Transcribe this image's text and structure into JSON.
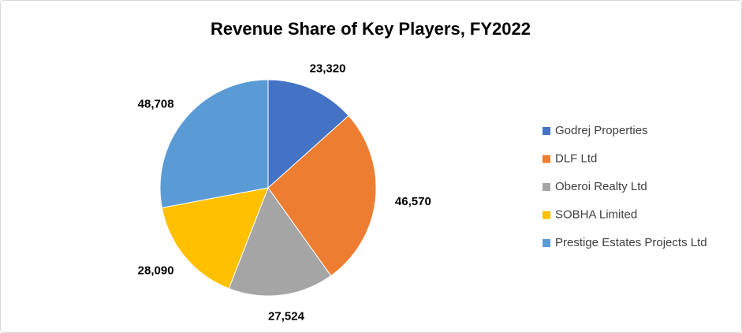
{
  "chart_data": {
    "type": "pie",
    "title": "Revenue Share of Key Players, FY2022",
    "categories": [
      "Godrej Properties",
      "DLF Ltd",
      "Oberoi Realty Ltd",
      "SOBHA Limited",
      "Prestige Estates Projects Ltd"
    ],
    "values": [
      23320,
      46570,
      27524,
      28090,
      48708
    ],
    "value_labels": [
      "23,320",
      "46,570",
      "27,524",
      "28,090",
      "48,708"
    ],
    "colors": [
      "#4472c4",
      "#ed7d31",
      "#a5a5a5",
      "#ffc000",
      "#5b9bd5"
    ],
    "legend": "right"
  }
}
